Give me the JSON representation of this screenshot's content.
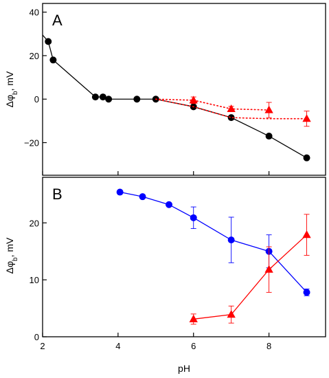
{
  "chart_data": [
    {
      "type": "line",
      "panel_label": "A",
      "ylabel": "Δφb, mV",
      "ylabel_main": "Δφ",
      "ylabel_sub": "b",
      "ylabel_suffix": ", mV",
      "xlim": [
        2,
        9.5
      ],
      "ylim": [
        -35,
        44
      ],
      "y_ticks": [
        40,
        20,
        0,
        -20
      ],
      "y_tick_labels": [
        "40",
        "20",
        "0",
        "−20"
      ],
      "grid": false,
      "series": [
        {
          "color": "#000000",
          "marker": "circle",
          "line_style": "solid",
          "x": [
            2.15,
            2.28,
            3.4,
            3.6,
            3.75,
            4.5,
            5.0,
            6.0,
            7.0,
            8.0,
            9.0
          ],
          "y": [
            26.5,
            18.0,
            1.0,
            1.0,
            0.0,
            0.0,
            0.0,
            -3.5,
            -8.5,
            -17.0,
            -27.0
          ],
          "leading_segment": {
            "x": [
              2.0,
              2.15
            ],
            "y": [
              29.5,
              26.5
            ]
          }
        },
        {
          "color": "#ff0000",
          "marker": "triangle",
          "line_style": "dotted",
          "x": [
            6.0,
            7.0,
            8.0,
            9.0
          ],
          "y": [
            -0.5,
            -4.5,
            -5.0,
            -9.0
          ],
          "error": [
            1.5,
            1.2,
            3.5,
            3.5
          ],
          "from_point": {
            "x": 5.0,
            "y": 0.0
          },
          "dotted_lines": [
            {
              "x": [
                5.0,
                6.0,
                7.0,
                8.0
              ],
              "y": [
                0.0,
                -0.5,
                -4.5,
                -5.0
              ]
            },
            {
              "x": [
                5.0,
                6.0,
                7.0,
                8.0,
                9.0
              ],
              "y": [
                0.0,
                -3.5,
                -8.5,
                -9.0,
                -9.0
              ]
            }
          ]
        }
      ]
    },
    {
      "type": "line",
      "panel_label": "B",
      "ylabel": "Δφb, mV",
      "ylabel_main": "Δφ",
      "ylabel_sub": "b",
      "ylabel_suffix": ", mV",
      "xlabel": "pH",
      "xlim": [
        2,
        9.5
      ],
      "ylim": [
        0,
        28
      ],
      "x_ticks": [
        2,
        4,
        6,
        8
      ],
      "y_ticks": [
        0,
        10,
        20
      ],
      "grid": false,
      "series": [
        {
          "color": "#0000ff",
          "marker": "circle",
          "line_style": "solid",
          "x": [
            4.05,
            4.65,
            5.35,
            6.0,
            7.0,
            8.0,
            9.0
          ],
          "y": [
            25.4,
            24.6,
            23.2,
            20.9,
            17.0,
            15.0,
            7.8
          ],
          "error": [
            0,
            0,
            0,
            1.9,
            4.0,
            2.9,
            0.6
          ]
        },
        {
          "color": "#ff0000",
          "marker": "triangle",
          "line_style": "solid",
          "x": [
            6.0,
            7.0,
            8.0,
            9.0
          ],
          "y": [
            3.1,
            3.9,
            11.8,
            17.9
          ],
          "error": [
            0.9,
            1.5,
            4.0,
            3.6
          ]
        }
      ]
    }
  ]
}
